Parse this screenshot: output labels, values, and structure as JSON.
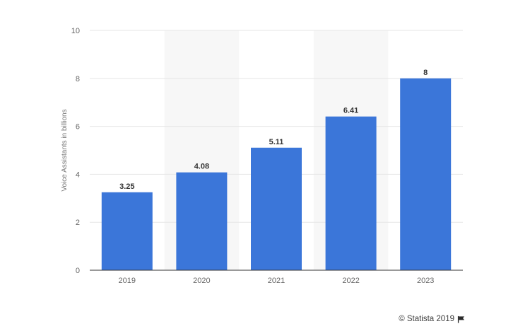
{
  "chart_data": {
    "type": "bar",
    "categories": [
      "2019",
      "2020",
      "2021",
      "2022",
      "2023"
    ],
    "values": [
      3.25,
      4.08,
      5.11,
      6.41,
      8
    ],
    "value_labels": [
      "3.25",
      "4.08",
      "5.11",
      "6.41",
      "8"
    ],
    "ylabel": "Voice Assistants in billions",
    "xlabel": "",
    "ylim": [
      0,
      10
    ],
    "yticks": [
      "0",
      "2",
      "4",
      "6",
      "8",
      "10"
    ],
    "grid": true,
    "bar_color": "#3b76d9",
    "alt_band_color": "#f7f7f7"
  },
  "credit": {
    "text": "© Statista 2019",
    "icon": "flag-icon"
  }
}
